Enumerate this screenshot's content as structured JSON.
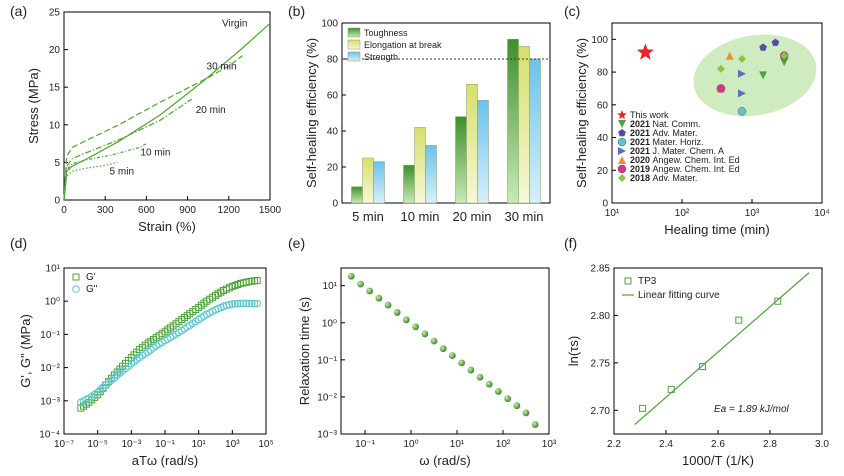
{
  "chart_data": [
    {
      "id": "a",
      "type": "line",
      "panel_label": "(a)",
      "xlabel": "Strain (%)",
      "ylabel": "Stress (MPa)",
      "xlim": [
        0,
        1500
      ],
      "ylim": [
        0,
        25
      ],
      "xticks": [
        0,
        300,
        600,
        900,
        1200,
        1500
      ],
      "yticks": [
        0,
        5,
        10,
        15,
        20,
        25
      ],
      "series": [
        {
          "name": "Virgin",
          "style": "solid",
          "x": [
            0,
            20,
            60,
            150,
            400,
            700,
            1000,
            1300,
            1500
          ],
          "y": [
            0,
            3.8,
            4.5,
            5.3,
            7.8,
            11.3,
            15.6,
            20.2,
            23.5
          ]
        },
        {
          "name": "30 min",
          "style": "dashed",
          "x": [
            0,
            20,
            60,
            150,
            400,
            700,
            1000,
            1200,
            1300
          ],
          "y": [
            0,
            5.8,
            7.0,
            7.8,
            10.0,
            13.0,
            15.8,
            17.8,
            19.2
          ]
        },
        {
          "name": "20 min",
          "style": "dashdot",
          "x": [
            0,
            20,
            60,
            150,
            400,
            700,
            930
          ],
          "y": [
            0,
            4.5,
            5.5,
            6.2,
            8.0,
            10.6,
            13.4
          ]
        },
        {
          "name": "10 min",
          "style": "dotdash",
          "x": [
            0,
            20,
            60,
            150,
            350,
            550,
            600
          ],
          "y": [
            0,
            4.0,
            4.8,
            5.3,
            6.0,
            7.0,
            7.5
          ]
        },
        {
          "name": "5 min",
          "style": "dotted",
          "x": [
            0,
            20,
            60,
            150,
            300,
            390
          ],
          "y": [
            0,
            3.2,
            3.8,
            4.2,
            4.6,
            5.0
          ]
        }
      ]
    },
    {
      "id": "b",
      "type": "bar",
      "panel_label": "(b)",
      "ylabel": "Self-healing efficiency (%)",
      "categories": [
        "5 min",
        "10 min",
        "20 min",
        "30 min"
      ],
      "ylim": [
        0,
        100
      ],
      "yticks": [
        0,
        20,
        40,
        60,
        80,
        100
      ],
      "reference_line": 80,
      "legend_position": "top-left",
      "series": [
        {
          "name": "Toughness",
          "color": "#4ea33a",
          "values": [
            9,
            21,
            48,
            91
          ]
        },
        {
          "name": "Elongation at break",
          "color": "#e2e98a",
          "values": [
            25,
            42,
            66,
            87
          ]
        },
        {
          "name": "Strength",
          "color": "#8fd0ef",
          "values": [
            23,
            32,
            57,
            80
          ]
        }
      ]
    },
    {
      "id": "c",
      "type": "scatter",
      "panel_label": "(c)",
      "xlabel": "Healing time (min)",
      "ylabel": "Self-healing efficiency (%)",
      "xscale": "log",
      "xlim": [
        10,
        10000
      ],
      "ylim": [
        0,
        110
      ],
      "xtick_labels": [
        "10¹",
        "10²",
        "10³",
        "10⁴"
      ],
      "yticks": [
        0,
        20,
        40,
        60,
        80,
        100
      ],
      "legend_position": "bottom-left",
      "series": [
        {
          "name": "This work",
          "year": "",
          "marker": "star",
          "color": "#e8262a",
          "x": [
            30
          ],
          "y": [
            92
          ]
        },
        {
          "name": "Nat. Comm.",
          "year": "2021",
          "marker": "tri-down",
          "color": "#4ea33a",
          "x": [
            1440,
            2880
          ],
          "y": [
            78,
            86
          ]
        },
        {
          "name": "Adv. Mater.",
          "year": "2021",
          "marker": "pentagon",
          "color": "#5b48a8",
          "x": [
            1440,
            2160
          ],
          "y": [
            95,
            98
          ]
        },
        {
          "name": "Mater. Horiz.",
          "year": "2021",
          "marker": "circle",
          "color": "#5cc6d0",
          "x": [
            720
          ],
          "y": [
            56
          ]
        },
        {
          "name": "J. Mater. Chem. A",
          "year": "2021",
          "marker": "tri-right",
          "color": "#5572c0",
          "x": [
            720,
            720
          ],
          "y": [
            67,
            79
          ]
        },
        {
          "name": "Angew. Chem. Int. Ed",
          "year": "2020",
          "marker": "tri-up",
          "color": "#f28c3a",
          "x": [
            360,
            480
          ],
          "y": [
            70,
            90
          ]
        },
        {
          "name": "Angew. Chem. Int. Ed",
          "year": "2019",
          "marker": "circle",
          "color": "#d6328f",
          "x": [
            360,
            2880
          ],
          "y": [
            70,
            90
          ]
        },
        {
          "name": "Adv. Mater.",
          "year": "2018",
          "marker": "diamond",
          "color": "#8cc63f",
          "x": [
            360,
            720,
            2880
          ],
          "y": [
            82,
            88,
            90
          ]
        }
      ]
    },
    {
      "id": "d",
      "type": "scatter",
      "panel_label": "(d)",
      "xlabel": "aTω (rad/s)",
      "ylabel": "G', G\" (MPa)",
      "xscale": "log",
      "yscale": "log",
      "xlim": [
        1e-07,
        100000.0
      ],
      "ylim": [
        0.0001,
        10
      ],
      "xtick_labels": [
        "10⁻⁷",
        "10⁻⁵",
        "10⁻³",
        "10⁻¹",
        "10¹",
        "10³",
        "10⁵"
      ],
      "ytick_labels": [
        "10⁻⁴",
        "10⁻³",
        "10⁻²",
        "10⁻¹",
        "10⁰",
        "10¹"
      ],
      "legend_position": "top-left",
      "series": [
        {
          "name": "G'",
          "marker": "square",
          "color": "#4ea33a",
          "x": [
            1e-06,
            3e-06,
            1e-05,
            3e-05,
            0.0001,
            0.0003,
            0.001,
            0.003,
            0.01,
            0.03,
            0.1,
            0.3,
            1,
            3,
            10,
            30,
            100,
            300,
            1000,
            3000,
            10000,
            30000
          ],
          "y": [
            0.0006,
            0.0009,
            0.0015,
            0.003,
            0.006,
            0.011,
            0.02,
            0.035,
            0.055,
            0.08,
            0.12,
            0.18,
            0.28,
            0.42,
            0.65,
            1.0,
            1.5,
            2.1,
            2.8,
            3.4,
            3.9,
            4.2
          ]
        },
        {
          "name": "G\"",
          "marker": "circle",
          "color": "#5cc6d0",
          "x": [
            1e-06,
            3e-06,
            1e-05,
            3e-05,
            0.0001,
            0.0003,
            0.001,
            0.003,
            0.01,
            0.03,
            0.1,
            0.3,
            1,
            3,
            10,
            30,
            100,
            300,
            1000,
            3000,
            10000,
            30000
          ],
          "y": [
            0.0009,
            0.0012,
            0.0018,
            0.003,
            0.005,
            0.008,
            0.013,
            0.02,
            0.03,
            0.045,
            0.065,
            0.09,
            0.13,
            0.19,
            0.28,
            0.4,
            0.55,
            0.7,
            0.82,
            0.86,
            0.85,
            0.85
          ]
        }
      ]
    },
    {
      "id": "e",
      "type": "scatter",
      "panel_label": "(e)",
      "xlabel": "ω (rad/s)",
      "ylabel": "Relaxation time (s)",
      "xscale": "log",
      "yscale": "log",
      "xlim": [
        0.03,
        1000
      ],
      "ylim": [
        0.001,
        30
      ],
      "xtick_labels": [
        "10⁻¹",
        "10⁰",
        "10¹",
        "10²",
        "10³"
      ],
      "ytick_labels": [
        "10⁻³",
        "10⁻²",
        "10⁻¹",
        "10⁰",
        "10¹"
      ],
      "series": [
        {
          "name": "",
          "marker": "sphere",
          "color": "#4ea33a",
          "x": [
            0.05,
            0.08,
            0.126,
            0.2,
            0.316,
            0.5,
            0.79,
            1.26,
            2.0,
            3.16,
            5.0,
            7.9,
            12.6,
            20,
            31.6,
            50,
            79,
            126,
            200,
            316,
            500
          ],
          "y": [
            18,
            11,
            7.2,
            4.6,
            3.0,
            1.9,
            1.2,
            0.78,
            0.5,
            0.32,
            0.2,
            0.13,
            0.083,
            0.053,
            0.034,
            0.022,
            0.014,
            0.009,
            0.0058,
            0.0037,
            0.0018
          ]
        }
      ]
    },
    {
      "id": "f",
      "type": "scatter",
      "panel_label": "(f)",
      "xlabel": "1000/T (1/K)",
      "ylabel": "ln(τs)",
      "xlim": [
        2.2,
        3.0
      ],
      "ylim": [
        2.675,
        2.85
      ],
      "xticks": [
        2.2,
        2.4,
        2.6,
        2.8,
        3.0
      ],
      "yticks": [
        2.7,
        2.75,
        2.8,
        2.85
      ],
      "tick_decimals": {
        "x": 1,
        "y": 2
      },
      "legend_position": "top-left",
      "annotation": "Ea = 1.89 kJ/mol",
      "series": [
        {
          "name": "TP3",
          "marker": "square",
          "color": "#4ea33a",
          "x": [
            2.31,
            2.42,
            2.54,
            2.68,
            2.83
          ],
          "y": [
            2.702,
            2.722,
            2.746,
            2.795,
            2.815
          ]
        },
        {
          "name": "Linear fitting curve",
          "marker": "line",
          "color": "#4ea33a",
          "x": [
            2.28,
            2.95
          ],
          "y": [
            2.685,
            2.845
          ]
        }
      ]
    }
  ]
}
